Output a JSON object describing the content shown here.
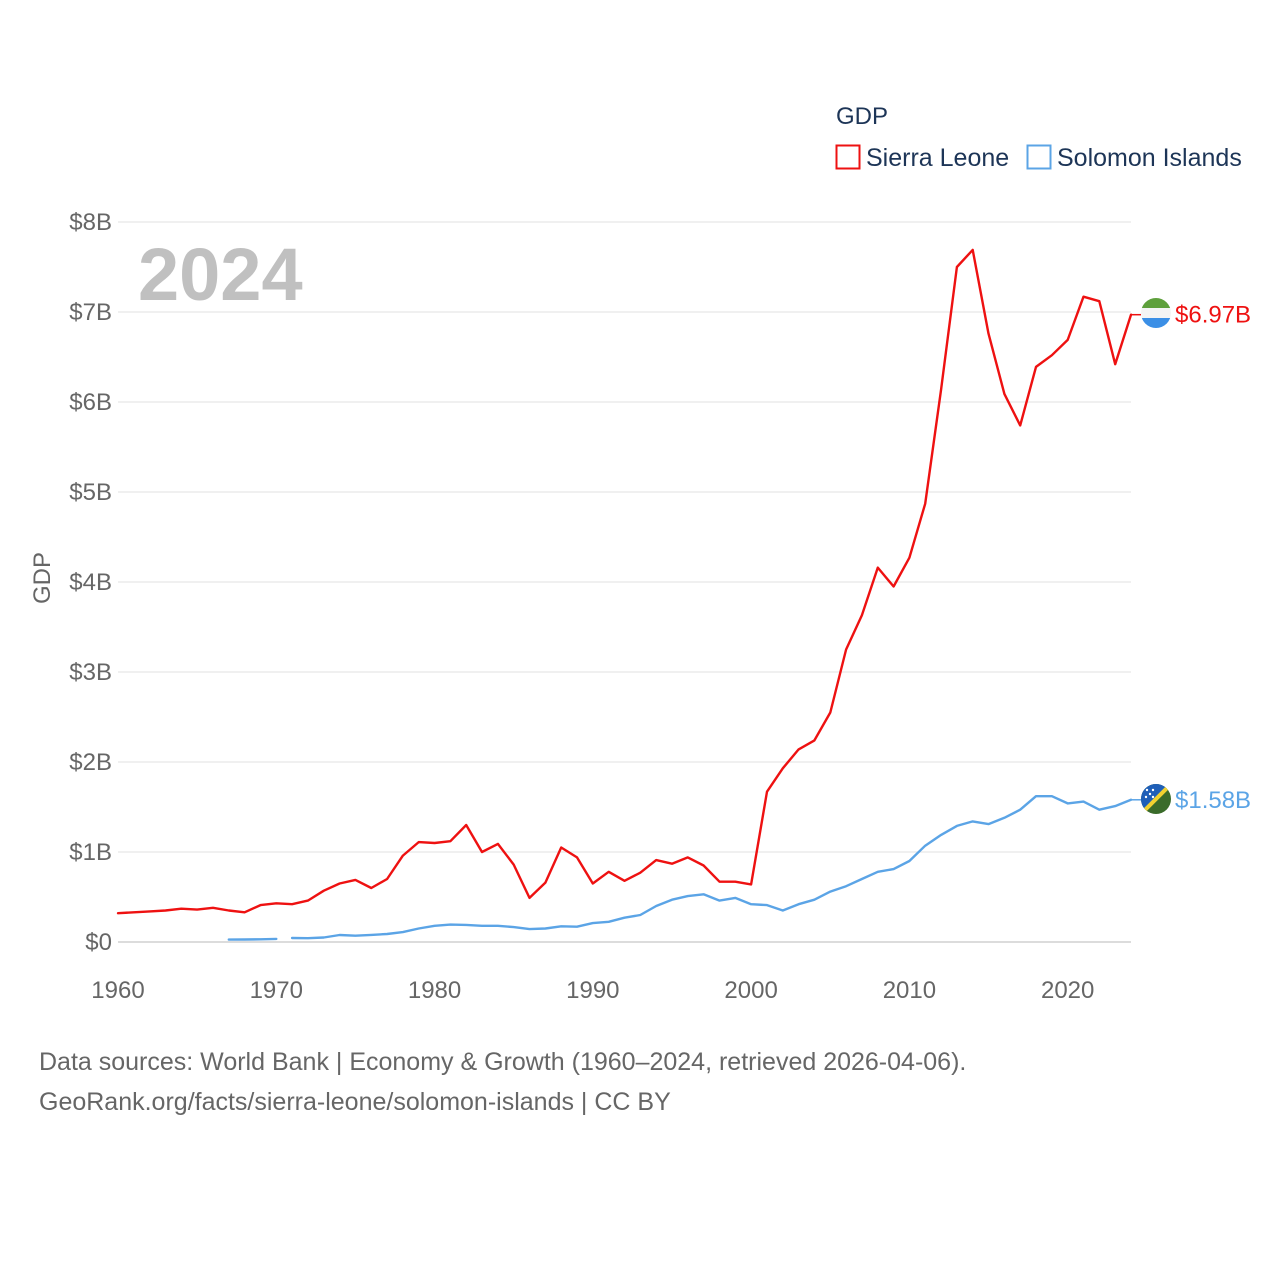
{
  "chart_data": {
    "type": "line",
    "title": "GDP",
    "year_overlay": "2024",
    "ylabel": "GDP",
    "xlabel": "",
    "xlim": [
      1960,
      2024
    ],
    "ylim": [
      0,
      8
    ],
    "y_unit": "billion USD",
    "x_ticks": [
      1960,
      1970,
      1980,
      1990,
      2000,
      2010,
      2020
    ],
    "x_tick_labels": [
      "1960",
      "1970",
      "1980",
      "1990",
      "2000",
      "2010",
      "2020"
    ],
    "y_ticks": [
      0,
      1,
      2,
      3,
      4,
      5,
      6,
      7,
      8
    ],
    "y_tick_labels": [
      "$0",
      "$1B",
      "$2B",
      "$3B",
      "$4B",
      "$5B",
      "$6B",
      "$7B",
      "$8B"
    ],
    "grid": true,
    "legend_position": "top-right",
    "series": [
      {
        "name": "Sierra Leone",
        "color": "#ee1111",
        "end_label": "$6.97B",
        "flag": "sierra-leone-flag-icon",
        "points": [
          [
            1960,
            0.32
          ],
          [
            1961,
            0.33
          ],
          [
            1962,
            0.34
          ],
          [
            1963,
            0.35
          ],
          [
            1964,
            0.37
          ],
          [
            1965,
            0.36
          ],
          [
            1966,
            0.38
          ],
          [
            1967,
            0.35
          ],
          [
            1968,
            0.33
          ],
          [
            1969,
            0.41
          ],
          [
            1970,
            0.43
          ],
          [
            1971,
            0.42
          ],
          [
            1972,
            0.46
          ],
          [
            1973,
            0.57
          ],
          [
            1974,
            0.65
          ],
          [
            1975,
            0.69
          ],
          [
            1976,
            0.6
          ],
          [
            1977,
            0.7
          ],
          [
            1978,
            0.96
          ],
          [
            1979,
            1.11
          ],
          [
            1980,
            1.1
          ],
          [
            1981,
            1.12
          ],
          [
            1982,
            1.3
          ],
          [
            1983,
            1.0
          ],
          [
            1984,
            1.09
          ],
          [
            1985,
            0.86
          ],
          [
            1986,
            0.49
          ],
          [
            1987,
            0.66
          ],
          [
            1988,
            1.05
          ],
          [
            1989,
            0.94
          ],
          [
            1990,
            0.65
          ],
          [
            1991,
            0.78
          ],
          [
            1992,
            0.68
          ],
          [
            1993,
            0.77
          ],
          [
            1994,
            0.91
          ],
          [
            1995,
            0.87
          ],
          [
            1996,
            0.94
          ],
          [
            1997,
            0.85
          ],
          [
            1998,
            0.67
          ],
          [
            1999,
            0.67
          ],
          [
            2000,
            0.64
          ],
          [
            2001,
            1.67
          ],
          [
            2002,
            1.93
          ],
          [
            2003,
            2.14
          ],
          [
            2004,
            2.24
          ],
          [
            2005,
            2.55
          ],
          [
            2006,
            3.25
          ],
          [
            2007,
            3.63
          ],
          [
            2008,
            4.16
          ],
          [
            2009,
            3.95
          ],
          [
            2010,
            4.27
          ],
          [
            2011,
            4.87
          ],
          [
            2012,
            6.14
          ],
          [
            2013,
            7.5
          ],
          [
            2014,
            7.69
          ],
          [
            2015,
            6.76
          ],
          [
            2016,
            6.09
          ],
          [
            2017,
            5.74
          ],
          [
            2018,
            6.39
          ],
          [
            2019,
            6.52
          ],
          [
            2020,
            6.69
          ],
          [
            2021,
            7.17
          ],
          [
            2022,
            7.12
          ],
          [
            2023,
            6.42
          ],
          [
            2024,
            6.97
          ]
        ]
      },
      {
        "name": "Solomon Islands",
        "color": "#5ba4e6",
        "end_label": "$1.58B",
        "flag": "solomon-islands-flag-icon",
        "segments": [
          [
            [
              1967,
              0.027
            ],
            [
              1968,
              0.028
            ],
            [
              1969,
              0.03
            ],
            [
              1970,
              0.035
            ]
          ],
          [
            [
              1971,
              0.045
            ],
            [
              1972,
              0.042
            ],
            [
              1973,
              0.05
            ],
            [
              1974,
              0.078
            ],
            [
              1975,
              0.07
            ],
            [
              1976,
              0.079
            ],
            [
              1977,
              0.089
            ],
            [
              1978,
              0.11
            ],
            [
              1979,
              0.15
            ],
            [
              1980,
              0.18
            ],
            [
              1981,
              0.193
            ],
            [
              1982,
              0.19
            ],
            [
              1983,
              0.18
            ],
            [
              1984,
              0.18
            ],
            [
              1985,
              0.165
            ],
            [
              1986,
              0.143
            ],
            [
              1987,
              0.15
            ],
            [
              1988,
              0.175
            ],
            [
              1989,
              0.17
            ],
            [
              1990,
              0.21
            ],
            [
              1991,
              0.225
            ],
            [
              1992,
              0.27
            ],
            [
              1993,
              0.3
            ],
            [
              1994,
              0.4
            ],
            [
              1995,
              0.47
            ],
            [
              1996,
              0.51
            ],
            [
              1997,
              0.53
            ],
            [
              1998,
              0.46
            ],
            [
              1999,
              0.49
            ],
            [
              2000,
              0.42
            ],
            [
              2001,
              0.41
            ],
            [
              2002,
              0.35
            ],
            [
              2003,
              0.42
            ],
            [
              2004,
              0.47
            ],
            [
              2005,
              0.56
            ],
            [
              2006,
              0.62
            ],
            [
              2007,
              0.7
            ],
            [
              2008,
              0.78
            ],
            [
              2009,
              0.81
            ],
            [
              2010,
              0.9
            ],
            [
              2011,
              1.07
            ],
            [
              2012,
              1.19
            ],
            [
              2013,
              1.29
            ],
            [
              2014,
              1.34
            ],
            [
              2015,
              1.31
            ],
            [
              2016,
              1.38
            ],
            [
              2017,
              1.47
            ],
            [
              2018,
              1.62
            ],
            [
              2019,
              1.62
            ],
            [
              2020,
              1.54
            ],
            [
              2021,
              1.56
            ],
            [
              2022,
              1.47
            ],
            [
              2023,
              1.51
            ],
            [
              2024,
              1.58
            ]
          ]
        ]
      }
    ],
    "source_line_1": "Data sources: World Bank | Economy & Growth (1960–2024, retrieved 2026-04-06).",
    "source_line_2": "GeoRank.org/facts/sierra-leone/solomon-islands | CC BY"
  }
}
